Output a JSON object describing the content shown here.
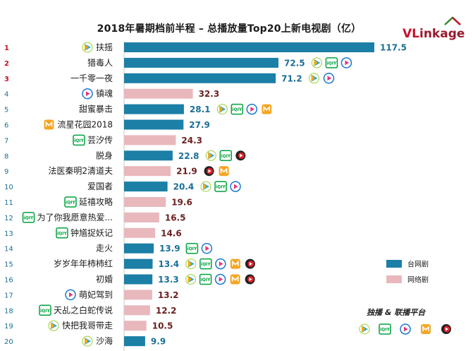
{
  "title": "2018年暑期档前半程 – 总播放量Top20上新电视剧（亿）",
  "logo": {
    "vl": "VL",
    "rest": "inkage"
  },
  "colors": {
    "tv_network": "#1b7fa6",
    "web": "#e8b8bd",
    "value_tv": "#1b6f95",
    "value_web": "#6b1f1f",
    "rank_top3": "#c8102e",
    "rank_other": "#1b6f95"
  },
  "legend": [
    {
      "label": "台网剧",
      "kind": "tv_network"
    },
    {
      "label": "网络剧",
      "kind": "web"
    }
  ],
  "platform_label": "独播 & 联播平台",
  "platform_icons": [
    "tencent-video-icon",
    "iqiyi-icon",
    "youku-icon",
    "mango-tv-icon",
    "sohu-video-icon"
  ],
  "chart_data": {
    "type": "bar",
    "orientation": "horizontal",
    "title": "2018年暑期档前半程 – 总播放量Top20上新电视剧（亿）",
    "categories": [
      "扶摇",
      "猎毒人",
      "一千零一夜",
      "镇魂",
      "甜蜜暴击",
      "流星花园2018",
      "芸汐传",
      "脱身",
      "法医秦明2清道夫",
      "爱国者",
      "延禧攻略",
      "为了你我愿意热爱...",
      "钟馗捉妖记",
      "走火",
      "岁岁年年柿柿红",
      "初婚",
      "萌妃驾到",
      "天乩之白蛇传说",
      "快把我哥带走",
      "沙海"
    ],
    "ranks": [
      "1",
      "2",
      "3",
      "4",
      "5",
      "6",
      "7",
      "8",
      "9",
      "10",
      "11",
      "12",
      "13",
      "14",
      "15",
      "16",
      "17",
      "18",
      "19",
      "20"
    ],
    "values": [
      117.5,
      72.5,
      71.2,
      32.3,
      28.1,
      27.9,
      24.3,
      22.8,
      21.9,
      20.4,
      19.6,
      16.5,
      14.6,
      13.9,
      13.4,
      13.3,
      13.2,
      12.2,
      10.5,
      9.9
    ],
    "value_labels": [
      "117.5",
      "72.5",
      "71.2",
      "32.3",
      "28.1",
      "27.9",
      "24.3",
      "22.8",
      "21.9",
      "20.4",
      "19.6",
      "16.5",
      "14.6",
      "13.9",
      "13.4",
      "13.3",
      "13.2",
      "12.2",
      "10.5",
      "9.9"
    ],
    "kinds": [
      "tv_network",
      "tv_network",
      "tv_network",
      "web",
      "tv_network",
      "tv_network",
      "web",
      "tv_network",
      "web",
      "tv_network",
      "web",
      "web",
      "web",
      "tv_network",
      "tv_network",
      "tv_network",
      "web",
      "web",
      "web",
      "tv_network"
    ],
    "exclusive_icons": [
      "tencent",
      "",
      "",
      "youku",
      "",
      "mango",
      "iqiyi",
      "",
      "",
      "",
      "iqiyi",
      "iqiyi",
      "iqiyi",
      "",
      "",
      "",
      "youku",
      "iqiyi",
      "tencent",
      "tencent"
    ],
    "partner_icons": [
      [],
      [
        "tencent",
        "iqiyi",
        "youku"
      ],
      [
        "tencent",
        "youku"
      ],
      [],
      [
        "tencent",
        "iqiyi",
        "youku",
        "mango"
      ],
      [],
      [],
      [
        "tencent",
        "iqiyi",
        "sohu"
      ],
      [
        "sohu",
        "mango"
      ],
      [
        "tencent",
        "iqiyi",
        "youku"
      ],
      [],
      [],
      [],
      [
        "iqiyi",
        "youku"
      ],
      [
        "tencent",
        "iqiyi",
        "youku",
        "mango",
        "sohu"
      ],
      [
        "tencent",
        "iqiyi",
        "youku",
        "mango",
        "sohu"
      ],
      [],
      [],
      [],
      []
    ],
    "xlim": [
      0,
      117.5
    ],
    "legend": [
      "台网剧",
      "网络剧"
    ],
    "legend_position": "right"
  }
}
